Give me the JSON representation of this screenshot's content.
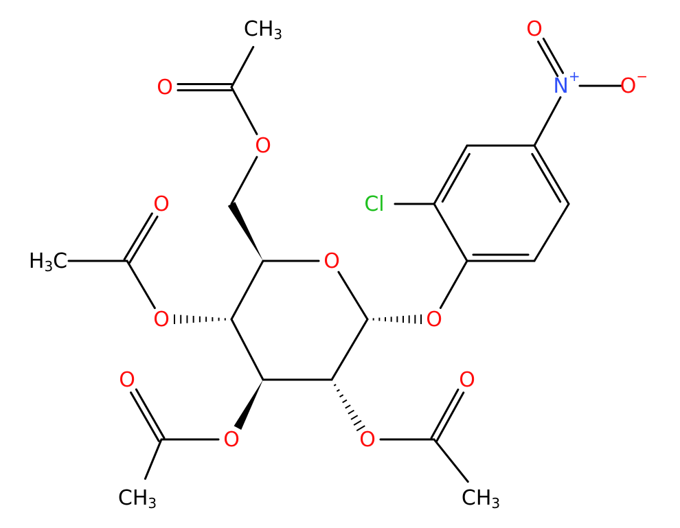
{
  "labels": [
    {
      "parts": [
        "O"
      ],
      "color": "#ff0d0d"
    },
    {
      "parts": [
        "O"
      ],
      "color": "#ff0d0d"
    },
    {
      "parts": [
        "Cl"
      ],
      "color": "#1fc01f"
    },
    {
      "parts": [
        "N"
      ],
      "charge": "+",
      "color": "#3050f8"
    },
    {
      "parts": [
        "O"
      ],
      "color": "#ff0d0d"
    },
    {
      "parts": [
        "O"
      ],
      "charge": "−",
      "color": "#ff0d0d"
    },
    {
      "parts": [
        "O"
      ],
      "color": "#ff0d0d"
    },
    {
      "parts": [
        "O"
      ],
      "color": "#ff0d0d"
    },
    {
      "parts": [
        "CH",
        "3"
      ],
      "color": "#000000"
    },
    {
      "parts": [
        "O"
      ],
      "color": "#ff0d0d"
    },
    {
      "parts": [
        "O"
      ],
      "color": "#ff0d0d"
    },
    {
      "parts": [
        "H",
        "3",
        "C"
      ],
      "color": "#000000"
    },
    {
      "parts": [
        "O"
      ],
      "color": "#ff0d0d"
    },
    {
      "parts": [
        "O"
      ],
      "color": "#ff0d0d"
    },
    {
      "parts": [
        "CH",
        "3"
      ],
      "color": "#000000"
    },
    {
      "parts": [
        "O"
      ],
      "color": "#ff0d0d"
    },
    {
      "parts": [
        "O"
      ],
      "color": "#ff0d0d"
    },
    {
      "parts": [
        "CH",
        "3"
      ],
      "color": "#000000"
    }
  ]
}
